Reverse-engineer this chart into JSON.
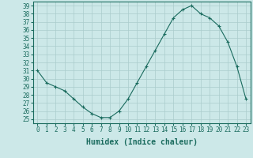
{
  "x": [
    0,
    1,
    2,
    3,
    4,
    5,
    6,
    7,
    8,
    9,
    10,
    11,
    12,
    13,
    14,
    15,
    16,
    17,
    18,
    19,
    20,
    21,
    22,
    23
  ],
  "y": [
    31.0,
    29.5,
    29.0,
    28.5,
    27.5,
    26.5,
    25.7,
    25.2,
    25.2,
    26.0,
    27.5,
    29.5,
    31.5,
    33.5,
    35.5,
    37.5,
    38.5,
    39.0,
    38.0,
    37.5,
    36.5,
    34.5,
    31.5,
    27.5
  ],
  "line_color": "#1a6b5e",
  "marker": "+",
  "marker_size": 3,
  "bg_color": "#cce8e8",
  "grid_color": "#aacccc",
  "xlabel": "Humidex (Indice chaleur)",
  "xlim": [
    -0.5,
    23.5
  ],
  "ylim": [
    24.5,
    39.5
  ],
  "xticks": [
    0,
    1,
    2,
    3,
    4,
    5,
    6,
    7,
    8,
    9,
    10,
    11,
    12,
    13,
    14,
    15,
    16,
    17,
    18,
    19,
    20,
    21,
    22,
    23
  ],
  "yticks": [
    25,
    26,
    27,
    28,
    29,
    30,
    31,
    32,
    33,
    34,
    35,
    36,
    37,
    38,
    39
  ],
  "tick_color": "#1a6b5e",
  "xlabel_fontsize": 7,
  "tick_fontsize": 5.5
}
